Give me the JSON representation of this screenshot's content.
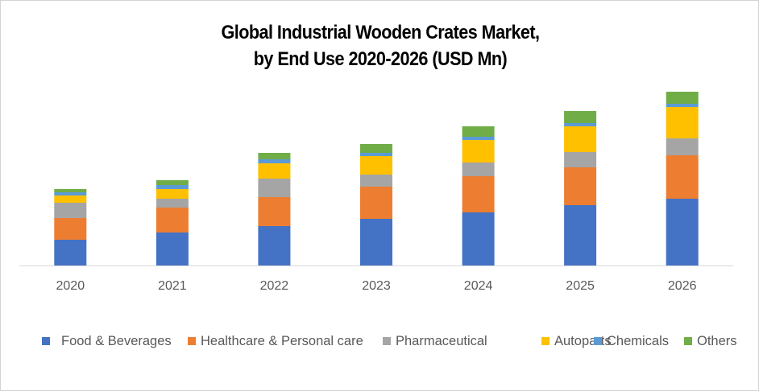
{
  "chart_data": {
    "type": "bar",
    "stacked": true,
    "title": "Global Industrial Wooden Crates Market,",
    "subtitle": "by End Use 2020-2026 (USD Mn)",
    "title_lines": [
      "Global Industrial Wooden Crates Market,",
      "by End Use 2020-2026 (USD Mn)"
    ],
    "xlabel": "",
    "ylabel": "",
    "y_axis_visible": false,
    "grid": false,
    "legend_position": "bottom",
    "categories": [
      "2020",
      "2021",
      "2022",
      "2023",
      "2024",
      "2025",
      "2026"
    ],
    "ylim": [
      0,
      230
    ],
    "series": [
      {
        "name": "Food & Beverages",
        "color": "#4472C4",
        "values": [
          32,
          41,
          49,
          58,
          66,
          75,
          83
        ]
      },
      {
        "name": "Healthcare & Personal care",
        "color": "#ED7D31",
        "values": [
          27,
          31,
          36,
          40,
          45,
          47,
          54
        ]
      },
      {
        "name": "Pharmaceutical",
        "color": "#A5A5A5",
        "values": [
          19,
          11,
          23,
          15,
          17,
          19,
          21
        ]
      },
      {
        "name": "Autoparts",
        "color": "#FFC000",
        "values": [
          9,
          12,
          19,
          23,
          28,
          32,
          39
        ]
      },
      {
        "name": "Chemicals",
        "color": "#5B9BD5",
        "values": [
          4,
          5,
          5,
          4,
          4,
          4,
          4
        ]
      },
      {
        "name": "Others",
        "color": "#70AD47",
        "values": [
          4,
          6,
          8,
          11,
          13,
          15,
          15
        ]
      }
    ]
  }
}
